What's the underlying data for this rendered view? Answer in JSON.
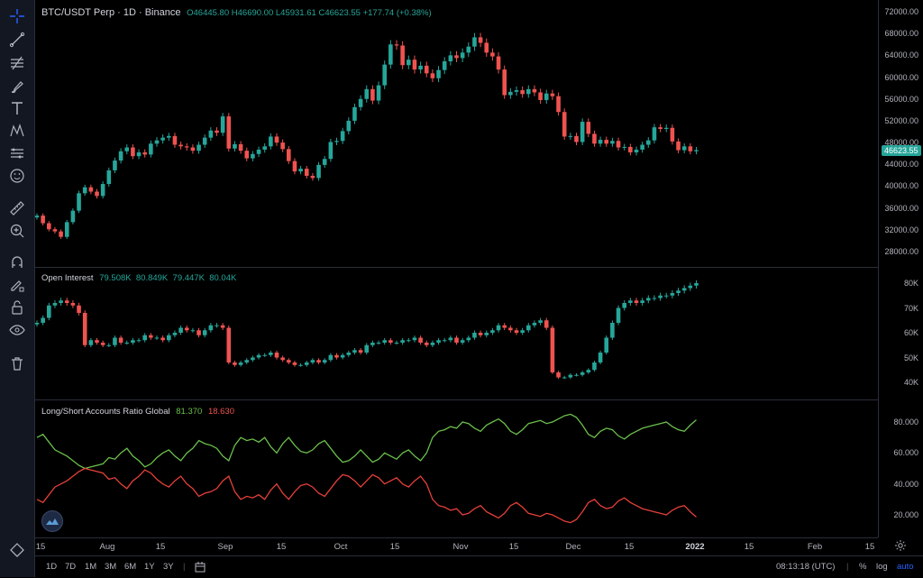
{
  "header": {
    "symbol": "BTC/USDT Perp · 1D · Binance",
    "open": "O46445.80",
    "high": "H46690.00",
    "low": "L45931.61",
    "close": "C46623.55",
    "change": "+177.74 (+0.38%)"
  },
  "price_scale": [
    "72000.00",
    "68000.00",
    "64000.00",
    "60000.00",
    "56000.00",
    "52000.00",
    "48000.00",
    "44000.00",
    "40000.00",
    "36000.00",
    "32000.00",
    "28000.00"
  ],
  "current_price": "46623.55",
  "oi": {
    "title": "Open Interest",
    "values": "79.508K  80.849K  79.447K  80.04K",
    "scale": [
      "80K",
      "70K",
      "60K",
      "50K",
      "40K"
    ]
  },
  "ls": {
    "title": "Long/Short Accounts Ratio Global",
    "long": "81.370",
    "short": "18.630",
    "scale": [
      "80.000",
      "60.000",
      "40.000",
      "20.000"
    ]
  },
  "time_scale": [
    "15",
    "Aug",
    "15",
    "Sep",
    "15",
    "Oct",
    "15",
    "Nov",
    "15",
    "Dec",
    "15",
    "2022",
    "15",
    "Feb",
    "15"
  ],
  "bottom": {
    "ranges": [
      "1D",
      "7D",
      "1M",
      "3M",
      "6M",
      "1Y",
      "3Y"
    ],
    "clock": "08:13:18 (UTC)",
    "percent": "%",
    "log": "log",
    "auto": "auto"
  },
  "colors": {
    "up": "#26a69a",
    "down": "#ef5350",
    "long": "#6bc04b",
    "short": "#e5403a"
  },
  "chart_data": {
    "type": "candlestick",
    "price_closes": [
      34600,
      33200,
      32100,
      31700,
      30700,
      33400,
      35500,
      38700,
      39800,
      39000,
      38200,
      40400,
      42900,
      44700,
      46400,
      47100,
      45500,
      46200,
      45800,
      47800,
      48400,
      48900,
      49200,
      47600,
      47300,
      47100,
      46500,
      47600,
      48900,
      50200,
      49800,
      52800,
      46900,
      47700,
      46500,
      45100,
      45900,
      46700,
      47300,
      49100,
      48000,
      46800,
      44600,
      42700,
      43200,
      41900,
      41500,
      43900,
      45000,
      48100,
      48300,
      50100,
      52000,
      54500,
      56000,
      57800,
      55700,
      58500,
      62300,
      66000,
      65800,
      62200,
      63200,
      61400,
      62100,
      60700,
      59800,
      61300,
      62900,
      64000,
      63500,
      64500,
      65600,
      67300,
      66300,
      64500,
      63800,
      61400,
      56700,
      57300,
      57600,
      56900,
      57800,
      57200,
      55800,
      57000,
      56500,
      53600,
      49100,
      49200,
      48100,
      51800,
      49600,
      47800,
      48500,
      47800,
      48300,
      47100,
      47200,
      46200,
      46700,
      47600,
      48400,
      50800,
      50500,
      50700,
      48200,
      46600,
      47300,
      46400,
      46620
    ],
    "oi_closes": [
      64,
      66,
      71,
      72,
      73,
      72,
      71,
      68,
      55,
      57,
      56,
      55,
      55,
      58,
      56,
      56,
      57,
      57,
      59,
      58,
      58,
      57,
      59,
      60,
      62,
      61,
      61,
      59,
      61,
      63,
      63,
      62,
      48,
      47,
      48,
      49,
      50,
      51,
      51,
      52,
      50,
      49,
      48,
      47,
      47,
      48,
      49,
      48,
      49,
      51,
      50,
      51,
      52,
      53,
      52,
      55,
      56,
      56,
      57,
      56,
      56,
      57,
      57,
      58,
      56,
      55,
      56,
      57,
      57,
      58,
      56,
      57,
      58,
      60,
      59,
      60,
      61,
      63,
      62,
      61,
      60,
      61,
      63,
      64,
      65,
      62,
      44,
      42,
      42,
      43,
      43,
      44,
      45,
      48,
      52,
      58,
      64,
      70,
      72,
      73,
      72,
      73,
      74,
      74,
      75,
      75,
      76,
      77,
      78,
      79,
      80
    ],
    "long_ratio": [
      70,
      72,
      67,
      62,
      60,
      58,
      55,
      52,
      50,
      51,
      52,
      53,
      57,
      56,
      60,
      63,
      58,
      55,
      51,
      53,
      57,
      60,
      62,
      58,
      55,
      60,
      63,
      68,
      66,
      65,
      63,
      58,
      55,
      65,
      70,
      68,
      69,
      67,
      70,
      64,
      60,
      66,
      70,
      65,
      61,
      60,
      62,
      66,
      68,
      63,
      58,
      54,
      55,
      58,
      62,
      58,
      54,
      56,
      60,
      58,
      56,
      60,
      62,
      58,
      55,
      60,
      70,
      74,
      75,
      77,
      76,
      80,
      79,
      76,
      74,
      78,
      80,
      82,
      79,
      74,
      72,
      75,
      79,
      80,
      81,
      79,
      80,
      82,
      84,
      85,
      83,
      78,
      72,
      70,
      74,
      76,
      75,
      71,
      69,
      72,
      74,
      76,
      77,
      78,
      79,
      80,
      77,
      75,
      74,
      78,
      81.37
    ]
  }
}
